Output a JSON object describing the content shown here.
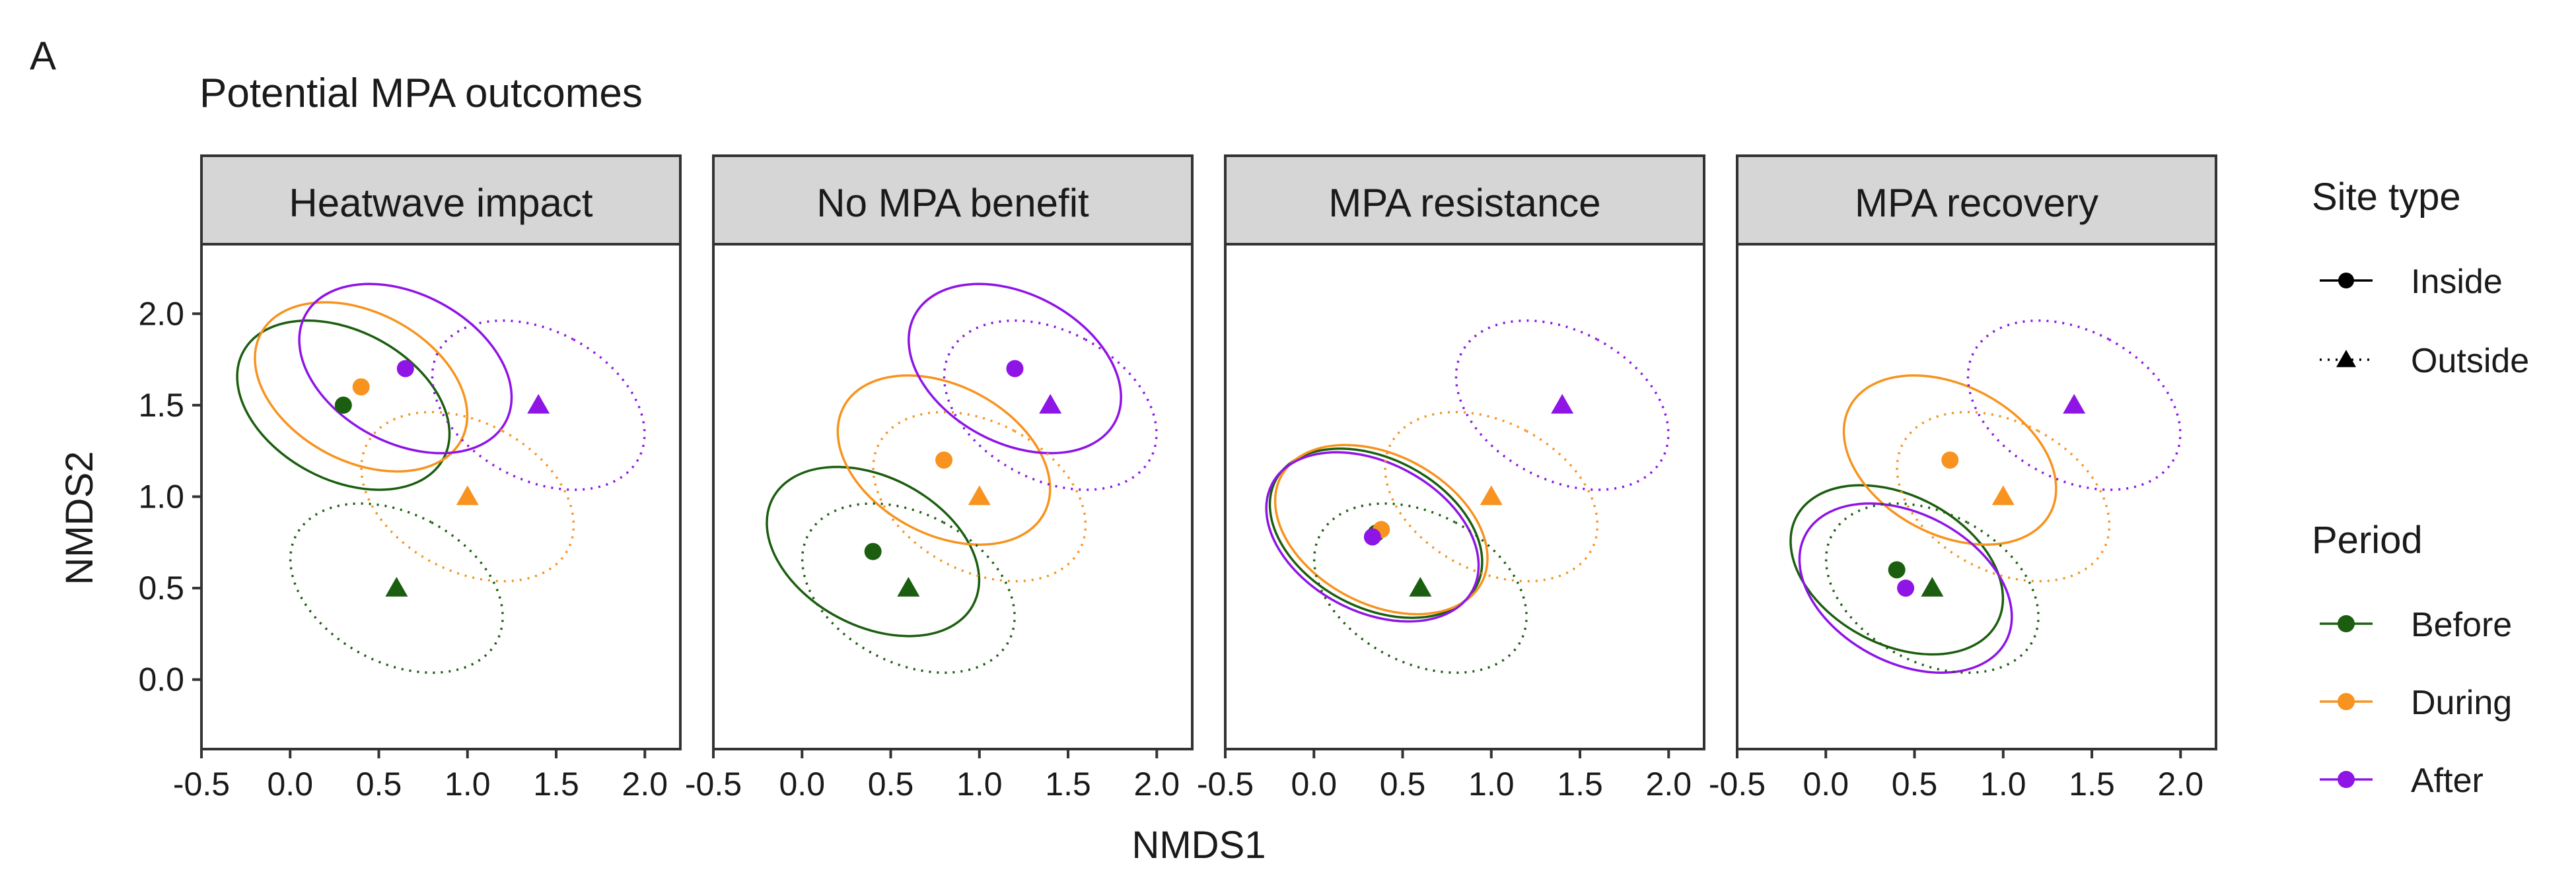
{
  "panel_tag": "A",
  "chart_data": {
    "type": "scatter",
    "title": "Potential MPA outcomes",
    "xlabel": "NMDS1",
    "ylabel": "NMDS2",
    "xlim": [
      -0.5,
      2.2
    ],
    "ylim": [
      -0.38,
      2.38
    ],
    "xticks": [
      -0.5,
      0.0,
      0.5,
      1.0,
      1.5,
      2.0
    ],
    "xtick_labels": [
      "-0.5",
      "0.0",
      "0.5",
      "1.0",
      "1.5",
      "2.0"
    ],
    "yticks": [
      0.0,
      0.5,
      1.0,
      1.5,
      2.0
    ],
    "ytick_labels": [
      "0.0",
      "0.5",
      "1.0",
      "1.5",
      "2.0"
    ],
    "grid": false,
    "facets": [
      {
        "label": "Heatwave impact",
        "points": [
          {
            "site": "Inside",
            "period": "Before",
            "x": 0.3,
            "y": 1.5
          },
          {
            "site": "Inside",
            "period": "During",
            "x": 0.4,
            "y": 1.6
          },
          {
            "site": "Inside",
            "period": "After",
            "x": 0.65,
            "y": 1.7
          },
          {
            "site": "Outside",
            "period": "Before",
            "x": 0.6,
            "y": 0.5
          },
          {
            "site": "Outside",
            "period": "During",
            "x": 1.0,
            "y": 1.0
          },
          {
            "site": "Outside",
            "period": "After",
            "x": 1.4,
            "y": 1.5
          }
        ]
      },
      {
        "label": "No MPA benefit",
        "points": [
          {
            "site": "Inside",
            "period": "Before",
            "x": 0.4,
            "y": 0.7
          },
          {
            "site": "Inside",
            "period": "During",
            "x": 0.8,
            "y": 1.2
          },
          {
            "site": "Inside",
            "period": "After",
            "x": 1.2,
            "y": 1.7
          },
          {
            "site": "Outside",
            "period": "Before",
            "x": 0.6,
            "y": 0.5
          },
          {
            "site": "Outside",
            "period": "During",
            "x": 1.0,
            "y": 1.0
          },
          {
            "site": "Outside",
            "period": "After",
            "x": 1.4,
            "y": 1.5
          }
        ]
      },
      {
        "label": "MPA resistance",
        "points": [
          {
            "site": "Inside",
            "period": "Before",
            "x": 0.35,
            "y": 0.8
          },
          {
            "site": "Inside",
            "period": "During",
            "x": 0.38,
            "y": 0.82
          },
          {
            "site": "Inside",
            "period": "After",
            "x": 0.33,
            "y": 0.78
          },
          {
            "site": "Outside",
            "period": "Before",
            "x": 0.6,
            "y": 0.5
          },
          {
            "site": "Outside",
            "period": "During",
            "x": 1.0,
            "y": 1.0
          },
          {
            "site": "Outside",
            "period": "After",
            "x": 1.4,
            "y": 1.5
          }
        ]
      },
      {
        "label": "MPA recovery",
        "points": [
          {
            "site": "Inside",
            "period": "Before",
            "x": 0.4,
            "y": 0.6
          },
          {
            "site": "Inside",
            "period": "During",
            "x": 0.7,
            "y": 1.2
          },
          {
            "site": "Inside",
            "period": "After",
            "x": 0.45,
            "y": 0.5
          },
          {
            "site": "Outside",
            "period": "Before",
            "x": 0.6,
            "y": 0.5
          },
          {
            "site": "Outside",
            "period": "During",
            "x": 1.0,
            "y": 1.0
          },
          {
            "site": "Outside",
            "period": "After",
            "x": 1.4,
            "y": 1.5
          }
        ]
      }
    ],
    "legend": {
      "placement": "right",
      "site_type": {
        "title": "Site type",
        "items": [
          {
            "label": "Inside",
            "shape": "circle",
            "line": "solid"
          },
          {
            "label": "Outside",
            "shape": "triangle",
            "line": "dotted"
          }
        ]
      },
      "period": {
        "title": "Period",
        "items": [
          {
            "label": "Before",
            "color": "#1b5e0f"
          },
          {
            "label": "During",
            "color": "#f7931e"
          },
          {
            "label": "After",
            "color": "#8f14e6"
          }
        ]
      }
    }
  }
}
